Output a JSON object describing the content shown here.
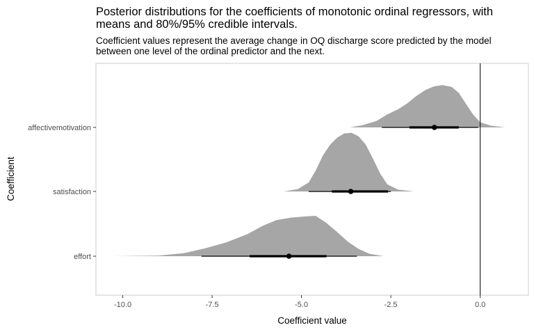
{
  "chart_data": {
    "type": "density",
    "title": "Posterior distributions for the coefficients of monotonic ordinal regressors, with means and 80%/95% credible intervals.",
    "subtitle": "Coefficient values represent the average change in OQ discharge score predicted by the model between one level of the ordinal predictor and the next.",
    "xlabel": "Coefficient value",
    "ylabel": "Coefficient",
    "xlim": [
      -10.75,
      1.35
    ],
    "x_ticks": [
      -10.0,
      -7.5,
      -5.0,
      -2.5,
      0.0
    ],
    "x_tick_labels": [
      "-10.0",
      "-7.5",
      "-5.0",
      "-2.5",
      "0.0"
    ],
    "categories": [
      "affectivemotivation",
      "satisfaction",
      "effort"
    ],
    "reference_line_x": 0,
    "grid": false,
    "fill_color": "#a6a6a6",
    "interval_color": "#000000",
    "series": [
      {
        "category": "affectivemotivation",
        "mean": -1.28,
        "ci80": [
          -1.98,
          -0.6
        ],
        "ci95": [
          -2.75,
          -0.05
        ],
        "density": [
          [
            -3.65,
            0.0
          ],
          [
            -3.3,
            0.05
          ],
          [
            -2.9,
            0.15
          ],
          [
            -2.6,
            0.3
          ],
          [
            -2.3,
            0.42
          ],
          [
            -2.05,
            0.55
          ],
          [
            -1.8,
            0.72
          ],
          [
            -1.55,
            0.86
          ],
          [
            -1.3,
            0.95
          ],
          [
            -1.05,
            0.98
          ],
          [
            -0.8,
            0.94
          ],
          [
            -0.6,
            0.8
          ],
          [
            -0.4,
            0.55
          ],
          [
            -0.2,
            0.3
          ],
          [
            0.0,
            0.12
          ],
          [
            0.3,
            0.04
          ],
          [
            0.7,
            0.0
          ]
        ]
      },
      {
        "category": "satisfaction",
        "mean": -3.62,
        "ci80": [
          -4.15,
          -2.58
        ],
        "ci95": [
          -4.8,
          -2.5
        ],
        "density": [
          [
            -5.5,
            0.0
          ],
          [
            -5.1,
            0.04
          ],
          [
            -4.8,
            0.15
          ],
          [
            -4.6,
            0.35
          ],
          [
            -4.4,
            0.6
          ],
          [
            -4.2,
            0.78
          ],
          [
            -4.0,
            0.9
          ],
          [
            -3.8,
            0.97
          ],
          [
            -3.6,
            0.98
          ],
          [
            -3.4,
            0.92
          ],
          [
            -3.2,
            0.78
          ],
          [
            -3.0,
            0.55
          ],
          [
            -2.8,
            0.3
          ],
          [
            -2.6,
            0.12
          ],
          [
            -2.3,
            0.03
          ],
          [
            -1.85,
            0.0
          ]
        ]
      },
      {
        "category": "effort",
        "mean": -5.35,
        "ci80": [
          -6.45,
          -4.3
        ],
        "ci95": [
          -7.8,
          -3.45
        ],
        "density": [
          [
            -10.25,
            0.0
          ],
          [
            -9.0,
            0.01
          ],
          [
            -8.3,
            0.05
          ],
          [
            -7.7,
            0.13
          ],
          [
            -7.1,
            0.23
          ],
          [
            -6.5,
            0.37
          ],
          [
            -6.1,
            0.5
          ],
          [
            -5.7,
            0.6
          ],
          [
            -5.3,
            0.64
          ],
          [
            -4.9,
            0.66
          ],
          [
            -4.6,
            0.67
          ],
          [
            -4.3,
            0.55
          ],
          [
            -4.0,
            0.4
          ],
          [
            -3.7,
            0.24
          ],
          [
            -3.4,
            0.12
          ],
          [
            -3.1,
            0.04
          ],
          [
            -2.7,
            0.0
          ]
        ]
      }
    ]
  }
}
